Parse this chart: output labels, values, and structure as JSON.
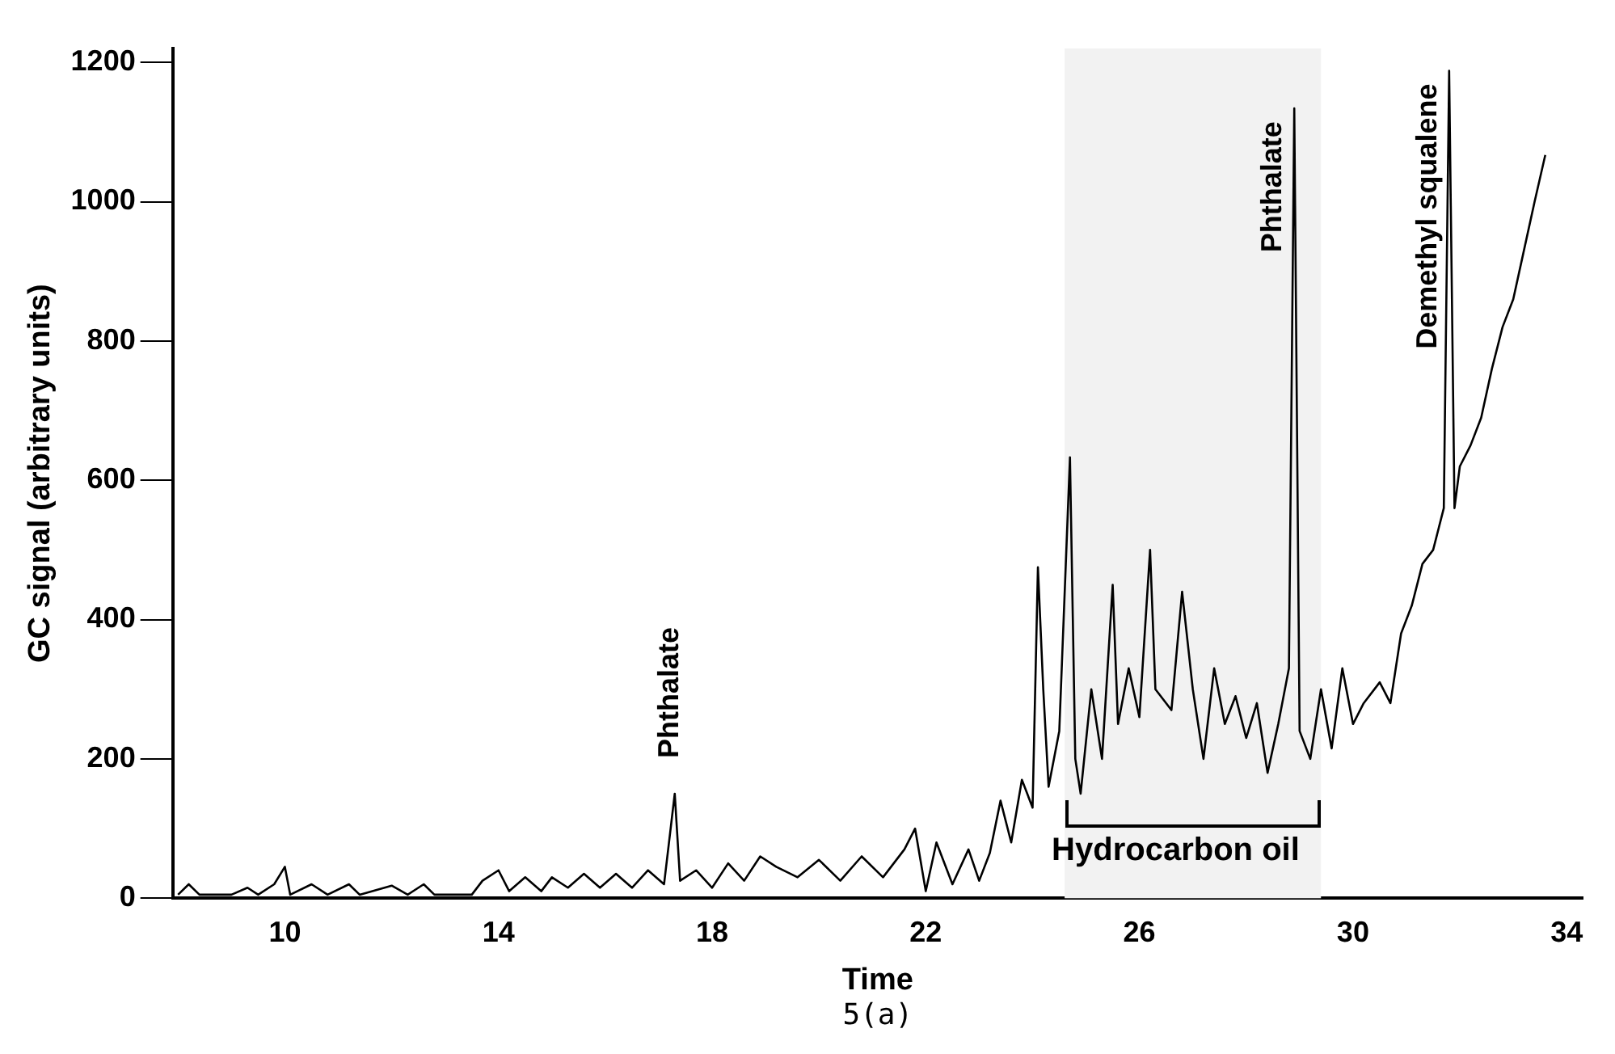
{
  "chart_data": {
    "type": "line",
    "xlabel": "Time",
    "ylabel": "GC signal (arbitrary units)",
    "x": [
      8.0,
      8.2,
      8.4,
      9.0,
      9.3,
      9.5,
      9.8,
      10.0,
      10.1,
      10.5,
      10.8,
      11.2,
      11.4,
      12.0,
      12.3,
      12.6,
      12.8,
      13.5,
      13.7,
      14.0,
      14.2,
      14.5,
      14.8,
      15.0,
      15.3,
      15.6,
      15.9,
      16.2,
      16.5,
      16.8,
      17.1,
      17.3,
      17.4,
      17.7,
      18.0,
      18.3,
      18.6,
      18.9,
      19.2,
      19.6,
      20.0,
      20.4,
      20.8,
      21.2,
      21.6,
      21.8,
      22.0,
      22.2,
      22.5,
      22.8,
      23.0,
      23.2,
      23.4,
      23.6,
      23.8,
      24.0,
      24.1,
      24.2,
      24.3,
      24.5,
      24.7,
      24.8,
      24.9,
      25.1,
      25.3,
      25.5,
      25.6,
      25.8,
      26.0,
      26.2,
      26.3,
      26.6,
      26.8,
      27.0,
      27.2,
      27.4,
      27.6,
      27.8,
      28.0,
      28.2,
      28.4,
      28.6,
      28.8,
      28.9,
      29.0,
      29.2,
      29.4,
      29.6,
      29.8,
      30.0,
      30.2,
      30.5,
      30.7,
      30.9,
      31.1,
      31.3,
      31.5,
      31.7,
      31.8,
      31.9,
      32.0,
      32.2,
      32.4,
      32.6,
      32.8,
      33.0,
      33.2,
      33.4,
      33.6
    ],
    "series": [
      {
        "color": "#000000",
        "values": [
          5,
          20,
          5,
          5,
          15,
          5,
          20,
          45,
          5,
          20,
          5,
          20,
          5,
          18,
          5,
          20,
          5,
          5,
          25,
          40,
          10,
          30,
          10,
          30,
          15,
          35,
          15,
          35,
          15,
          40,
          20,
          150,
          25,
          40,
          15,
          50,
          25,
          60,
          45,
          30,
          55,
          25,
          60,
          30,
          70,
          100,
          10,
          80,
          20,
          70,
          25,
          65,
          140,
          80,
          170,
          130,
          475,
          300,
          160,
          240,
          633,
          200,
          150,
          300,
          200,
          450,
          250,
          330,
          260,
          500,
          300,
          270,
          440,
          300,
          200,
          330,
          250,
          290,
          230,
          280,
          180,
          250,
          330,
          1134,
          240,
          200,
          300,
          215,
          330,
          250,
          280,
          310,
          280,
          380,
          420,
          480,
          500,
          560,
          1188,
          560,
          620,
          650,
          690,
          760,
          820,
          860,
          930,
          1000,
          1067
        ]
      }
    ],
    "xlim": [
      7.9,
      34.3
    ],
    "xticks": [
      10,
      14,
      18,
      22,
      26,
      30,
      34
    ],
    "ylim": [
      0,
      1220
    ],
    "yticks": [
      0,
      200,
      400,
      600,
      800,
      1000,
      1200
    ],
    "grid": false,
    "legend": false,
    "marker": "none",
    "line_style": "solid",
    "annotations": [
      {
        "text": "Phthalate",
        "x": 17.3,
        "y": 150
      },
      {
        "text": "Phthalate",
        "x": 28.9,
        "y": 1134
      },
      {
        "text": "Demethyl squalene",
        "x": 31.8,
        "y": 1188
      },
      "5(a)"
    ],
    "bands": [
      {
        "axis": "x",
        "from": 24.6,
        "to": 29.4,
        "label": "Hydrocarbon oil",
        "color": "#f2f2f2"
      }
    ]
  }
}
